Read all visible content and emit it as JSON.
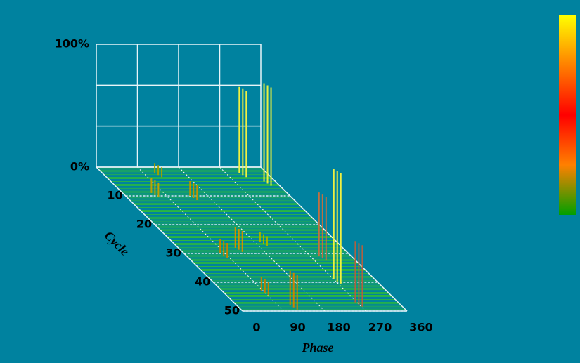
{
  "chart_data": {
    "type": "3d-spike",
    "xlabel": "Phase",
    "ylabel": "Cycle",
    "xlim": [
      0,
      360
    ],
    "xticks": [
      0,
      90,
      180,
      270,
      360
    ],
    "ylim": [
      0,
      50
    ],
    "yticks": [
      10,
      20,
      30,
      40,
      50
    ],
    "zlim": [
      0,
      100
    ],
    "zticks": [
      {
        "value": 0,
        "label": "0%"
      },
      {
        "value": 100,
        "label": "100%"
      }
    ],
    "x": [
      300,
      335,
      270,
      289,
      266,
      115,
      63,
      141,
      125,
      79,
      86,
      117,
      192
    ],
    "y": [
      2,
      5,
      39,
      31,
      47,
      2,
      9,
      10,
      28,
      30,
      43,
      48,
      26
    ],
    "values": [
      70,
      80,
      90,
      52,
      50,
      8,
      12,
      12,
      17,
      12,
      11,
      28,
      8
    ],
    "colors": [
      "#f0f040",
      "#e8f040",
      "#f0f040",
      "#c07040",
      "#b06040",
      "#a0a000",
      "#c0a000",
      "#c09000",
      "#d09000",
      "#c08000",
      "#c08000",
      "#d08000",
      "#a0b000"
    ],
    "colorbar": [
      "#ffff00",
      "#ff8000",
      "#ff0000",
      "#ff8000",
      "#00a000"
    ]
  }
}
